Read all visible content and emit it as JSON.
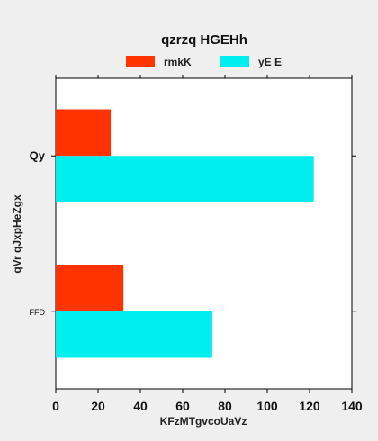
{
  "chart_data": {
    "type": "bar",
    "orientation": "horizontal",
    "title": "qzrzq HGEHh",
    "xlabel": "KFzMTgvcoUaVz",
    "ylabel": "qVr qJxpHeZgx",
    "categories": [
      "Qy",
      "FFD"
    ],
    "series": [
      {
        "name": "rmkK",
        "values": [
          26,
          32
        ],
        "color": "#ff3300"
      },
      {
        "name": "yE E",
        "values": [
          122,
          74
        ],
        "color": "#00eeee"
      }
    ],
    "xlim": [
      0,
      140
    ],
    "xticks": [
      0,
      20,
      40,
      60,
      80,
      100,
      120,
      140
    ],
    "grid": false,
    "legend": "top-center",
    "background": "#efefef",
    "plot_background": "#ffffff"
  }
}
